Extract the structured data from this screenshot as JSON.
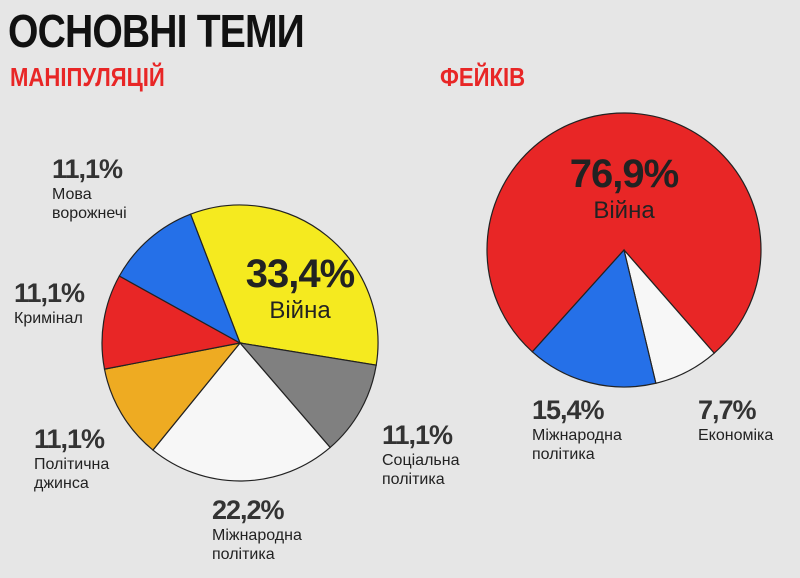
{
  "title": "ОСНОВНІ ТЕМИ",
  "chart_data": [
    {
      "type": "pie",
      "title": "МАНІПУЛЯЦІЙ",
      "categories": [
        "Війна",
        "Соціальна політика",
        "Міжнародна політика",
        "Політична джинса",
        "Кримінал",
        "Мова ворожнечі"
      ],
      "values": [
        33.4,
        11.1,
        22.2,
        11.1,
        11.1,
        11.1
      ],
      "value_labels": [
        "33,4%",
        "11,1%",
        "22,2%",
        "11,1%",
        "11,1%",
        "11,1%"
      ],
      "colors": [
        "#f5ea1f",
        "#808080",
        "#f7f7f7",
        "#eeab22",
        "#e82626",
        "#2570e8"
      ]
    },
    {
      "type": "pie",
      "title": "ФЕЙКІВ",
      "categories": [
        "Війна",
        "Економіка",
        "Міжнародна політика"
      ],
      "values": [
        76.9,
        7.7,
        15.4
      ],
      "value_labels": [
        "76,9%",
        "7,7%",
        "15,4%"
      ],
      "colors": [
        "#e82626",
        "#f7f7f7",
        "#2570e8"
      ]
    }
  ]
}
